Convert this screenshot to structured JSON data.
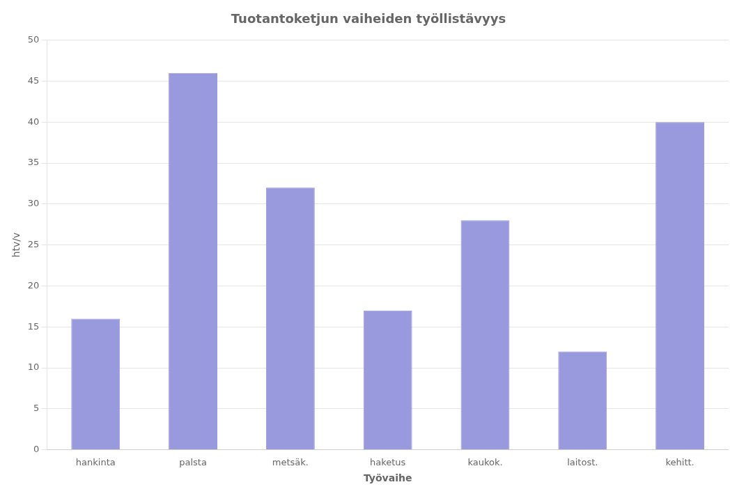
{
  "chart_data": {
    "type": "bar",
    "title": "Tuotantoketjun vaiheiden työllistävyys",
    "xlabel": "Työvaihe",
    "ylabel": "htv/v",
    "categories": [
      "hankinta",
      "palsta",
      "metsäk.",
      "haketus",
      "kaukok.",
      "laitost.",
      "kehitt."
    ],
    "values": [
      16,
      46,
      32,
      17,
      28,
      12,
      40
    ],
    "color": "#9999dd",
    "ylim": [
      0,
      50
    ],
    "yticks": [
      0,
      5,
      10,
      15,
      20,
      25,
      30,
      35,
      40,
      45,
      50
    ],
    "grid": true
  }
}
